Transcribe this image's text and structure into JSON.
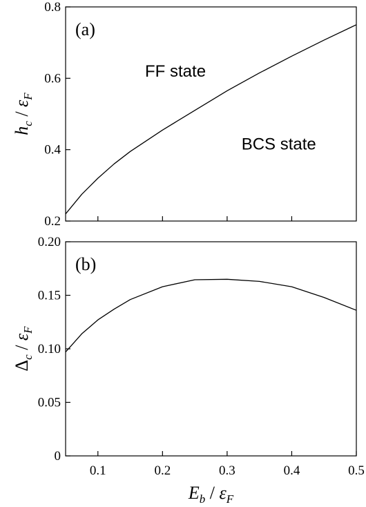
{
  "chart_data": [
    {
      "type": "line",
      "panel_label": "(a)",
      "ylabel": {
        "main": "h",
        "sub": "c",
        "sep": " / ",
        "denom": "ε",
        "denom_sub": "F"
      },
      "xlim": [
        0.05,
        0.5
      ],
      "ylim": [
        0.2,
        0.8
      ],
      "yticks": [
        "0.2",
        "0.4",
        "0.6",
        "0.8"
      ],
      "ytick_values": [
        0.2,
        0.4,
        0.6,
        0.8
      ],
      "x_minor_ticks": [
        0.1,
        0.2,
        0.3,
        0.4
      ],
      "annotations": [
        {
          "text": "FF state",
          "x": 0.22,
          "y": 0.605
        },
        {
          "text": "BCS state",
          "x": 0.38,
          "y": 0.4
        }
      ],
      "series": [
        {
          "x": [
            0.05,
            0.075,
            0.1,
            0.125,
            0.15,
            0.2,
            0.25,
            0.3,
            0.35,
            0.4,
            0.45,
            0.5
          ],
          "values": [
            0.22,
            0.275,
            0.32,
            0.36,
            0.395,
            0.455,
            0.51,
            0.565,
            0.615,
            0.662,
            0.707,
            0.75
          ]
        }
      ]
    },
    {
      "type": "line",
      "panel_label": "(b)",
      "ylabel": {
        "main": "Δ",
        "sub": "c",
        "sep": " / ",
        "denom": "ε",
        "denom_sub": "F"
      },
      "xlabel": {
        "main": "E",
        "sub": "b",
        "sep": " / ",
        "denom": "ε",
        "denom_sub": "F"
      },
      "xlim": [
        0.05,
        0.5
      ],
      "ylim": [
        0,
        0.2
      ],
      "xticks": [
        "0.1",
        "0.2",
        "0.3",
        "0.4",
        "0.5"
      ],
      "xtick_values": [
        0.1,
        0.2,
        0.3,
        0.4,
        0.5
      ],
      "yticks": [
        "0",
        "0.05",
        "0.10",
        "0.15",
        "0.20"
      ],
      "ytick_values": [
        0,
        0.05,
        0.1,
        0.15,
        0.2
      ],
      "series": [
        {
          "x": [
            0.05,
            0.075,
            0.1,
            0.125,
            0.15,
            0.2,
            0.25,
            0.3,
            0.35,
            0.4,
            0.45,
            0.5
          ],
          "values": [
            0.097,
            0.114,
            0.127,
            0.137,
            0.146,
            0.158,
            0.1645,
            0.165,
            0.163,
            0.158,
            0.148,
            0.136
          ]
        }
      ]
    }
  ]
}
